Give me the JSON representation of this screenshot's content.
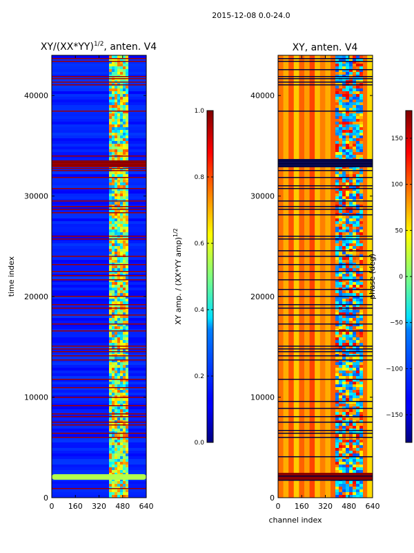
{
  "suptitle": "2015-12-08 0.0-24.0",
  "chart_data": [
    {
      "type": "heatmap",
      "title_main": "XY/(XX*YY)",
      "title_exp": "1/2",
      "title_tail": ", anten. V4",
      "xlabel": "",
      "ylabel": "time index",
      "xlim": [
        0,
        640
      ],
      "ylim": [
        0,
        44000
      ],
      "xticks": [
        0,
        160,
        320,
        480,
        640
      ],
      "xtick_labels": [
        "0",
        "160",
        "320",
        "480",
        "640"
      ],
      "yticks": [
        0,
        10000,
        20000,
        30000,
        40000
      ],
      "ytick_labels": [
        "0",
        "10000",
        "20000",
        "30000",
        "40000"
      ],
      "colorbar": {
        "label_main": "XY amp. / (XX*YY amp)",
        "label_exp": "1/2",
        "range": [
          0.0,
          1.0
        ],
        "ticks": [
          0.0,
          0.2,
          0.4,
          0.6,
          0.8,
          1.0
        ],
        "tick_labels": [
          "0.0",
          "0.2",
          "0.4",
          "0.6",
          "0.8",
          "1.0"
        ],
        "colormap": "jet"
      }
    },
    {
      "type": "heatmap",
      "title": "XY, anten. V4",
      "xlabel": "channel index",
      "ylabel": "",
      "xlim": [
        0,
        640
      ],
      "ylim": [
        0,
        44000
      ],
      "xticks": [
        0,
        160,
        320,
        480,
        640
      ],
      "xtick_labels": [
        "0",
        "160",
        "320",
        "480",
        "640"
      ],
      "yticks": [
        0,
        10000,
        20000,
        30000,
        40000
      ],
      "ytick_labels": [
        "0",
        "10000",
        "20000",
        "30000",
        "40000"
      ],
      "colorbar": {
        "label": "phase (deg)",
        "range": [
          -180,
          180
        ],
        "ticks": [
          -150,
          -100,
          -50,
          0,
          50,
          100,
          150
        ],
        "tick_labels": [
          "−150",
          "−100",
          "−50",
          "0",
          "50",
          "100",
          "150"
        ],
        "colormap": "jet"
      }
    }
  ]
}
